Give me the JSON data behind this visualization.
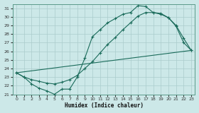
{
  "xlabel": "Humidex (Indice chaleur)",
  "bg_color": "#cce8e8",
  "grid_color": "#aacccc",
  "line_color": "#1a6b5a",
  "ylim": [
    21,
    31.5
  ],
  "xlim": [
    -0.5,
    23.5
  ],
  "yticks": [
    21,
    22,
    23,
    24,
    25,
    26,
    27,
    28,
    29,
    30,
    31
  ],
  "xticks": [
    0,
    1,
    2,
    3,
    4,
    5,
    6,
    7,
    8,
    9,
    10,
    11,
    12,
    13,
    14,
    15,
    16,
    17,
    18,
    19,
    20,
    21,
    22,
    23
  ],
  "series1_x": [
    0,
    1,
    2,
    3,
    4,
    5,
    6,
    7,
    8,
    9,
    10,
    11,
    12,
    13,
    14,
    15,
    16,
    17,
    18,
    19,
    20,
    21,
    22,
    23
  ],
  "series1_y": [
    23.5,
    23.0,
    22.2,
    21.7,
    21.4,
    21.0,
    21.6,
    21.6,
    23.0,
    25.2,
    27.7,
    28.5,
    29.3,
    29.8,
    30.3,
    30.5,
    31.3,
    31.2,
    30.5,
    30.4,
    29.9,
    28.9,
    27.0,
    26.1
  ],
  "series2_x": [
    0,
    1,
    2,
    3,
    4,
    5,
    6,
    7,
    8,
    9,
    10,
    11,
    12,
    13,
    14,
    15,
    16,
    17,
    18,
    19,
    20,
    21,
    22,
    23
  ],
  "series2_y": [
    23.5,
    23.0,
    22.7,
    22.5,
    22.3,
    22.2,
    22.4,
    22.7,
    23.2,
    24.0,
    24.8,
    25.8,
    26.8,
    27.6,
    28.5,
    29.3,
    30.1,
    30.5,
    30.5,
    30.3,
    29.9,
    29.0,
    27.5,
    26.1
  ],
  "series3_x": [
    0,
    23
  ],
  "series3_y": [
    23.5,
    26.1
  ]
}
